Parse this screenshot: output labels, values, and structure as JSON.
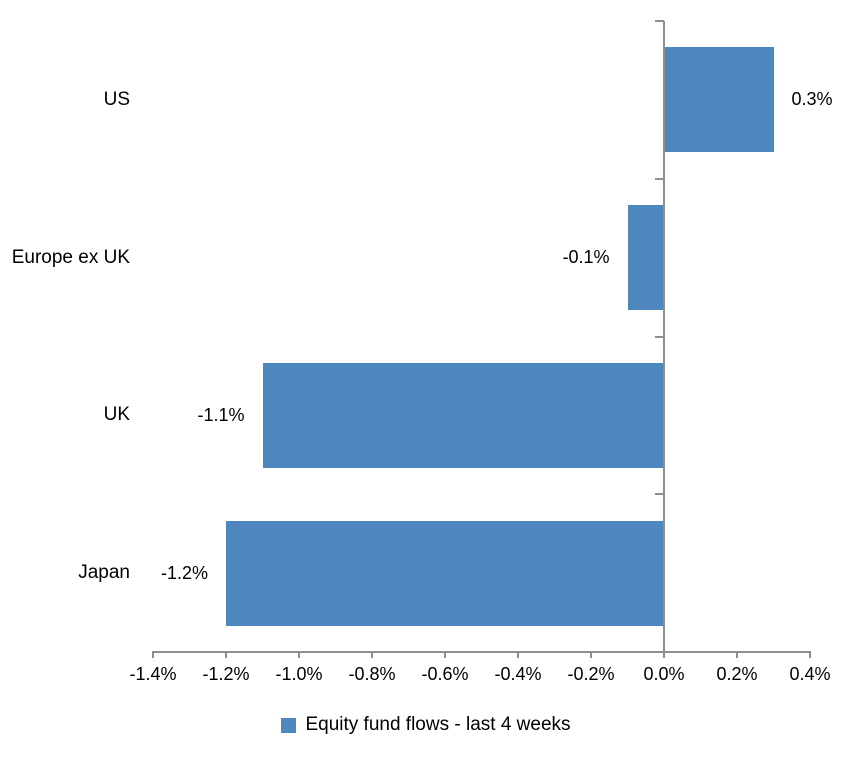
{
  "chart_data": {
    "type": "bar",
    "orientation": "horizontal",
    "unit": "%",
    "categories": [
      "US",
      "Europe ex UK",
      "UK",
      "Japan"
    ],
    "series": [
      {
        "name": "Equity fund flows - last 4 weeks",
        "values": [
          0.3,
          -0.1,
          -1.1,
          -1.2
        ]
      }
    ],
    "data_labels": [
      "0.3%",
      "-0.1%",
      "-1.1%",
      "-1.2%"
    ],
    "x_ticks": [
      "-1.4%",
      "-1.2%",
      "-1.0%",
      "-0.8%",
      "-0.6%",
      "-0.4%",
      "-0.2%",
      "0.0%",
      "0.2%",
      "0.4%"
    ],
    "xlim": [
      -1.4,
      0.4
    ],
    "x_tick_step": 0.2,
    "grid": false,
    "legend": {
      "label": "Equity fund flows - last 4 weeks",
      "position": "bottom"
    },
    "colors": {
      "bar": "#4D87BD",
      "axis": "#8E8E8E",
      "text": "#000000",
      "background": "#FFFFFF"
    }
  }
}
